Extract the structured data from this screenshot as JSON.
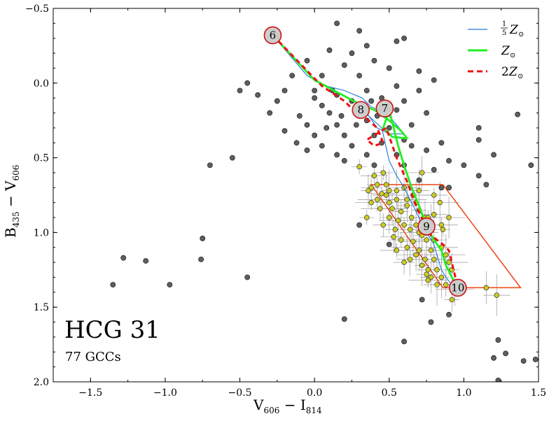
{
  "chart_data": {
    "type": "scatter",
    "title": "HCG 31",
    "subtitle": "77 GCCs",
    "xlabel": {
      "main": "V",
      "sub1": "606",
      "mid": " − I",
      "sub2": "814"
    },
    "ylabel": {
      "main": "B",
      "sub1": "435",
      "mid": " − V",
      "sub2": "606"
    },
    "xlim": [
      -1.75,
      1.5
    ],
    "ylim": [
      2.0,
      -0.5
    ],
    "x_ticks": [
      -1.5,
      -1.0,
      -0.5,
      0.0,
      0.5,
      1.0,
      1.5
    ],
    "y_ticks": [
      -0.5,
      0.0,
      0.5,
      1.0,
      1.5,
      2.0
    ],
    "x_tick_labels": [
      "−1.5",
      "−1.0",
      "−0.5",
      "0.0",
      "0.5",
      "1.0",
      "1.5"
    ],
    "y_tick_labels": [
      "−0.5",
      "0.0",
      "0.5",
      "1.0",
      "1.5",
      "2.0"
    ],
    "legend": {
      "position": "top-right",
      "entries": [
        {
          "label": "1/5 Z⊙",
          "frac_num": "1",
          "frac_den": "5",
          "text": "Z",
          "sun": "⊙",
          "color": "#1f77d4",
          "style": "solid-thin"
        },
        {
          "label": "Z⊙",
          "text": "Z",
          "sun": "⊙",
          "color": "#22ee22",
          "style": "solid-thick"
        },
        {
          "label": "2Z⊙",
          "prefix": "2",
          "text": "Z",
          "sun": "⊙",
          "color": "#ee1111",
          "style": "dashed"
        }
      ]
    },
    "colors": {
      "field": "#4d4d4d",
      "gcc": "#cccc22",
      "box": "#ee4411",
      "marker": "#cccccc",
      "marker_edge": "#cc1111"
    },
    "field_points": [
      [
        0.15,
        -0.4
      ],
      [
        0.3,
        -0.35
      ],
      [
        0.55,
        -0.28
      ],
      [
        0.6,
        -0.3
      ],
      [
        0.35,
        -0.25
      ],
      [
        0.1,
        -0.22
      ],
      [
        0.25,
        -0.2
      ],
      [
        0.4,
        -0.15
      ],
      [
        -0.05,
        -0.15
      ],
      [
        0.2,
        -0.12
      ],
      [
        0.5,
        -0.1
      ],
      [
        0.7,
        -0.08
      ],
      [
        -0.15,
        -0.05
      ],
      [
        -0.38,
        0.08
      ],
      [
        0.05,
        -0.05
      ],
      [
        0.3,
        -0.05
      ],
      [
        0.8,
        -0.02
      ],
      [
        0.55,
        0.02
      ],
      [
        -0.2,
        0.05
      ],
      [
        0.0,
        0.05
      ],
      [
        0.15,
        0.08
      ],
      [
        0.35,
        0.05
      ],
      [
        -0.45,
        0.0
      ],
      [
        -0.5,
        0.05
      ],
      [
        0.7,
        0.05
      ],
      [
        0.25,
        0.12
      ],
      [
        0.45,
        0.1
      ],
      [
        -0.25,
        0.12
      ],
      [
        0.05,
        0.15
      ],
      [
        0.6,
        0.12
      ],
      [
        -0.3,
        0.2
      ],
      [
        -0.1,
        0.22
      ],
      [
        0.1,
        0.2
      ],
      [
        0.3,
        0.18
      ],
      [
        0.55,
        0.18
      ],
      [
        0.75,
        0.2
      ],
      [
        -0.05,
        0.28
      ],
      [
        0.15,
        0.28
      ],
      [
        0.35,
        0.25
      ],
      [
        0.5,
        0.3
      ],
      [
        0.65,
        0.28
      ],
      [
        -0.2,
        0.32
      ],
      [
        0.0,
        0.35
      ],
      [
        0.2,
        0.35
      ],
      [
        0.4,
        0.35
      ],
      [
        0.6,
        0.38
      ],
      [
        0.05,
        0.42
      ],
      [
        0.25,
        0.42
      ],
      [
        0.45,
        0.4
      ],
      [
        0.65,
        0.42
      ],
      [
        -0.05,
        0.45
      ],
      [
        0.15,
        0.48
      ],
      [
        0.35,
        0.48
      ],
      [
        0.55,
        0.48
      ],
      [
        0.75,
        0.45
      ],
      [
        0.85,
        0.4
      ],
      [
        0.2,
        0.52
      ],
      [
        0.4,
        0.55
      ],
      [
        0.6,
        0.55
      ],
      [
        0.8,
        0.58
      ],
      [
        0.9,
        0.52
      ],
      [
        1.1,
        0.38
      ],
      [
        1.0,
        0.55
      ],
      [
        1.2,
        0.48
      ],
      [
        0.9,
        0.7
      ],
      [
        1.1,
        0.62
      ],
      [
        1.15,
        0.68
      ],
      [
        1.36,
        0.21
      ],
      [
        1.45,
        0.55
      ],
      [
        1.1,
        0.3
      ],
      [
        0.0,
        0.1
      ],
      [
        0.12,
        0.05
      ],
      [
        0.28,
        0.28
      ],
      [
        0.42,
        0.22
      ],
      [
        -0.12,
        0.4
      ],
      [
        0.08,
        0.3
      ],
      [
        0.48,
        0.14
      ],
      [
        0.18,
        0.22
      ],
      [
        0.38,
        0.12
      ],
      [
        -0.7,
        0.55
      ],
      [
        -0.55,
        0.5
      ],
      [
        -0.75,
        1.04
      ],
      [
        -0.76,
        1.18
      ],
      [
        -1.28,
        1.17
      ],
      [
        -1.13,
        1.19
      ],
      [
        -0.97,
        1.35
      ],
      [
        -1.35,
        1.35
      ],
      [
        -0.45,
        1.3
      ],
      [
        0.2,
        1.58
      ],
      [
        0.6,
        1.73
      ],
      [
        0.78,
        1.6
      ],
      [
        0.9,
        1.55
      ],
      [
        1.23,
        1.72
      ],
      [
        1.28,
        1.81
      ],
      [
        1.4,
        1.86
      ],
      [
        1.48,
        1.85
      ],
      [
        1.2,
        1.84
      ],
      [
        1.23,
        1.99
      ],
      [
        0.3,
        0.95
      ],
      [
        0.7,
        0.65
      ],
      [
        0.5,
        1.08
      ],
      [
        0.72,
        1.45
      ],
      [
        0.85,
        0.7
      ]
    ],
    "gcc_points": [
      [
        0.3,
        0.56
      ],
      [
        0.38,
        0.7
      ],
      [
        0.45,
        0.74
      ],
      [
        0.5,
        0.8
      ],
      [
        0.55,
        0.78
      ],
      [
        0.58,
        0.86
      ],
      [
        0.62,
        0.82
      ],
      [
        0.65,
        0.9
      ],
      [
        0.68,
        0.95
      ],
      [
        0.7,
        1.0
      ],
      [
        0.72,
        1.02
      ],
      [
        0.75,
        1.05
      ],
      [
        0.78,
        1.12
      ],
      [
        0.8,
        1.18
      ],
      [
        0.82,
        1.25
      ],
      [
        0.85,
        1.3
      ],
      [
        0.42,
        0.68
      ],
      [
        0.48,
        0.75
      ],
      [
        0.52,
        0.84
      ],
      [
        0.56,
        0.92
      ],
      [
        0.6,
        0.95
      ],
      [
        0.64,
        0.98
      ],
      [
        0.66,
        1.06
      ],
      [
        0.7,
        1.12
      ],
      [
        0.74,
        1.18
      ],
      [
        0.76,
        1.25
      ],
      [
        0.78,
        1.3
      ],
      [
        0.82,
        1.35
      ],
      [
        0.38,
        0.8
      ],
      [
        0.44,
        0.84
      ],
      [
        0.5,
        0.9
      ],
      [
        0.54,
        0.98
      ],
      [
        0.58,
        1.05
      ],
      [
        0.62,
        1.1
      ],
      [
        0.68,
        1.15
      ],
      [
        0.72,
        1.22
      ],
      [
        0.75,
        1.28
      ],
      [
        0.8,
        1.05
      ],
      [
        0.85,
        1.1
      ],
      [
        0.88,
        1.15
      ],
      [
        0.35,
        0.9
      ],
      [
        0.46,
        0.95
      ],
      [
        0.53,
        1.03
      ],
      [
        0.6,
        0.7
      ],
      [
        0.66,
        0.75
      ],
      [
        0.7,
        0.85
      ],
      [
        0.74,
        0.9
      ],
      [
        0.78,
        0.95
      ],
      [
        0.85,
        0.95
      ],
      [
        0.9,
        1.2
      ],
      [
        0.92,
        1.25
      ],
      [
        0.55,
        0.72
      ],
      [
        0.4,
        0.62
      ],
      [
        0.48,
        0.68
      ],
      [
        0.62,
        0.78
      ],
      [
        0.68,
        0.8
      ],
      [
        0.76,
        0.9
      ],
      [
        0.8,
        0.88
      ],
      [
        0.72,
        0.6
      ],
      [
        0.84,
        0.8
      ],
      [
        0.86,
        0.98
      ],
      [
        0.6,
        1.2
      ],
      [
        0.64,
        1.18
      ],
      [
        0.9,
        0.9
      ],
      [
        0.76,
        1.32
      ],
      [
        0.92,
        1.45
      ],
      [
        1.15,
        1.37
      ],
      [
        1.22,
        1.42
      ],
      [
        0.55,
        1.12
      ],
      [
        0.42,
        0.78
      ],
      [
        0.36,
        0.72
      ],
      [
        0.7,
        0.72
      ],
      [
        0.8,
        0.75
      ],
      [
        0.88,
        1.35
      ],
      [
        0.94,
        1.38
      ],
      [
        0.5,
        0.72
      ],
      [
        0.46,
        0.6
      ]
    ],
    "box_polygon": [
      [
        0.38,
        0.68
      ],
      [
        0.86,
        0.68
      ],
      [
        1.38,
        1.37
      ],
      [
        0.86,
        1.37
      ]
    ],
    "curves": [
      {
        "name": "1/5 Z⊙",
        "points": [
          [
            -0.28,
            -0.32
          ],
          [
            -0.05,
            -0.05
          ],
          [
            0.08,
            0.02
          ],
          [
            0.2,
            0.05
          ],
          [
            0.32,
            0.1
          ],
          [
            0.38,
            0.16
          ],
          [
            0.48,
            0.2
          ],
          [
            0.55,
            0.28
          ],
          [
            0.6,
            0.34
          ],
          [
            0.5,
            0.34
          ],
          [
            0.42,
            0.3
          ],
          [
            0.35,
            0.2
          ],
          [
            0.32,
            0.18
          ],
          [
            0.45,
            0.3
          ],
          [
            0.5,
            0.52
          ],
          [
            0.55,
            0.62
          ],
          [
            0.6,
            0.7
          ],
          [
            0.65,
            0.8
          ],
          [
            0.7,
            0.9
          ],
          [
            0.75,
            1.0
          ],
          [
            0.8,
            1.08
          ],
          [
            0.82,
            1.15
          ],
          [
            0.85,
            1.25
          ],
          [
            0.88,
            1.3
          ],
          [
            0.92,
            1.35
          ],
          [
            0.96,
            1.37
          ]
        ]
      },
      {
        "name": "Z⊙",
        "points": [
          [
            -0.28,
            -0.32
          ],
          [
            0.0,
            -0.02
          ],
          [
            0.15,
            0.06
          ],
          [
            0.3,
            0.14
          ],
          [
            0.4,
            0.18
          ],
          [
            0.5,
            0.25
          ],
          [
            0.58,
            0.32
          ],
          [
            0.62,
            0.37
          ],
          [
            0.52,
            0.36
          ],
          [
            0.46,
            0.3
          ],
          [
            0.5,
            0.18
          ],
          [
            0.56,
            0.42
          ],
          [
            0.6,
            0.55
          ],
          [
            0.65,
            0.7
          ],
          [
            0.7,
            0.82
          ],
          [
            0.75,
            0.96
          ],
          [
            0.8,
            1.05
          ],
          [
            0.85,
            1.12
          ],
          [
            0.88,
            1.22
          ],
          [
            0.92,
            1.3
          ],
          [
            0.96,
            1.37
          ]
        ]
      },
      {
        "name": "2Z⊙",
        "points": [
          [
            -0.28,
            -0.32
          ],
          [
            0.05,
            0.02
          ],
          [
            0.2,
            0.12
          ],
          [
            0.28,
            0.2
          ],
          [
            0.35,
            0.24
          ],
          [
            0.42,
            0.3
          ],
          [
            0.46,
            0.4
          ],
          [
            0.4,
            0.42
          ],
          [
            0.35,
            0.38
          ],
          [
            0.48,
            0.3
          ],
          [
            0.55,
            0.5
          ],
          [
            0.62,
            0.66
          ],
          [
            0.68,
            0.82
          ],
          [
            0.74,
            0.95
          ],
          [
            0.78,
            1.02
          ],
          [
            0.82,
            1.05
          ],
          [
            0.86,
            1.08
          ],
          [
            0.9,
            1.12
          ],
          [
            0.96,
            1.37
          ]
        ]
      }
    ],
    "age_markers": [
      {
        "label": "6",
        "x": -0.28,
        "y": -0.32
      },
      {
        "label": "8",
        "x": 0.31,
        "y": 0.18
      },
      {
        "label": "7",
        "x": 0.47,
        "y": 0.17
      },
      {
        "label": "9",
        "x": 0.75,
        "y": 0.96
      },
      {
        "label": "10",
        "x": 0.96,
        "y": 1.37
      }
    ]
  }
}
